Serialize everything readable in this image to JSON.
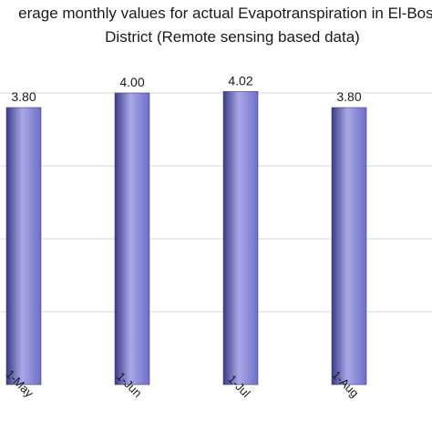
{
  "chart_data": {
    "type": "bar",
    "title_lines": [
      "erage monthly values for actual Evapotranspiration in El-Bosta",
      "District (Remote sensing based data)"
    ],
    "categories": [
      "1-May",
      "1-Jun",
      "1-Jul",
      "1-Aug"
    ],
    "values": [
      3.8,
      4.0,
      4.02,
      3.8
    ],
    "value_labels": [
      "3.80",
      "4.00",
      "4.02",
      "3.80"
    ],
    "ylim": [
      0,
      4.5
    ],
    "grid": true,
    "legend": "none",
    "colors": {
      "bar": "#6e6ec8",
      "bar_dark": "#3c3c88",
      "bar_light": "#a8a8e8",
      "grid": "#d9d9d9"
    }
  }
}
